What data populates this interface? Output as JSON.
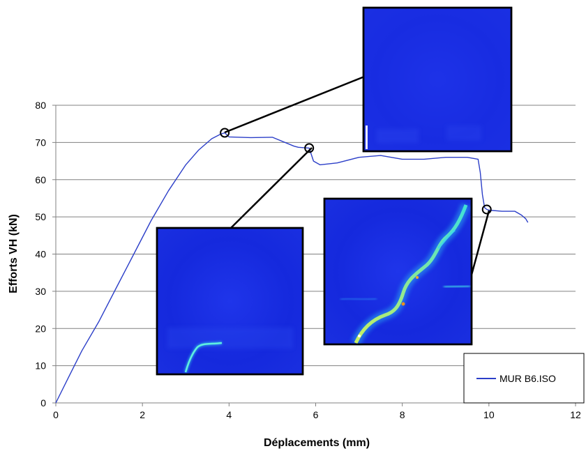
{
  "chart_data": {
    "type": "line",
    "xlabel": "Déplacements (mm)",
    "ylabel": "Efforts VH (kN)",
    "xlim": [
      0,
      12
    ],
    "ylim": [
      0,
      80
    ],
    "xticks": [
      0,
      2,
      4,
      6,
      8,
      10,
      12
    ],
    "yticks": [
      0,
      10,
      20,
      30,
      40,
      50,
      60,
      70,
      80
    ],
    "grid": "horizontal",
    "legend_position": "bottom-right",
    "series": [
      {
        "name": "MUR B6.ISO",
        "color": "#2b3ec8",
        "x": [
          0,
          0.3,
          0.6,
          1.0,
          1.4,
          1.8,
          2.2,
          2.6,
          3.0,
          3.3,
          3.6,
          3.8,
          3.9,
          4.0,
          4.5,
          5.0,
          5.5,
          5.6,
          5.85,
          5.95,
          6.1,
          6.5,
          7.0,
          7.5,
          8.0,
          8.5,
          9.0,
          9.5,
          9.75,
          9.8,
          9.85,
          9.9,
          9.95,
          10.0,
          10.3,
          10.6,
          10.75,
          10.85,
          10.9
        ],
        "y": [
          0,
          7,
          14,
          22,
          31,
          40,
          49,
          57,
          64,
          68,
          71,
          72.2,
          72.6,
          71.5,
          71.3,
          71.4,
          69,
          68.7,
          68.5,
          65,
          64,
          64.5,
          66,
          66.5,
          65.5,
          65.5,
          66,
          66,
          65.5,
          62,
          56,
          52.5,
          52,
          51.8,
          51.5,
          51.5,
          50.5,
          49.5,
          48.5
        ]
      }
    ],
    "markers": [
      {
        "x": 3.9,
        "y": 72.6
      },
      {
        "x": 5.85,
        "y": 68.5
      },
      {
        "x": 9.95,
        "y": 52
      }
    ]
  },
  "insets": [
    {
      "id": "inset-top",
      "image": "crack-map-uniform",
      "palette": [
        "#1a2ee6",
        "#0e2fd6"
      ]
    },
    {
      "id": "inset-left",
      "image": "crack-map-small-crack",
      "palette": [
        "#1a2ee6",
        "#3ee0e0"
      ]
    },
    {
      "id": "inset-right",
      "image": "crack-map-diagonal-crack",
      "palette": [
        "#1a2ee6",
        "#3ee0e0",
        "#c8e83a",
        "#e8a020"
      ]
    }
  ]
}
